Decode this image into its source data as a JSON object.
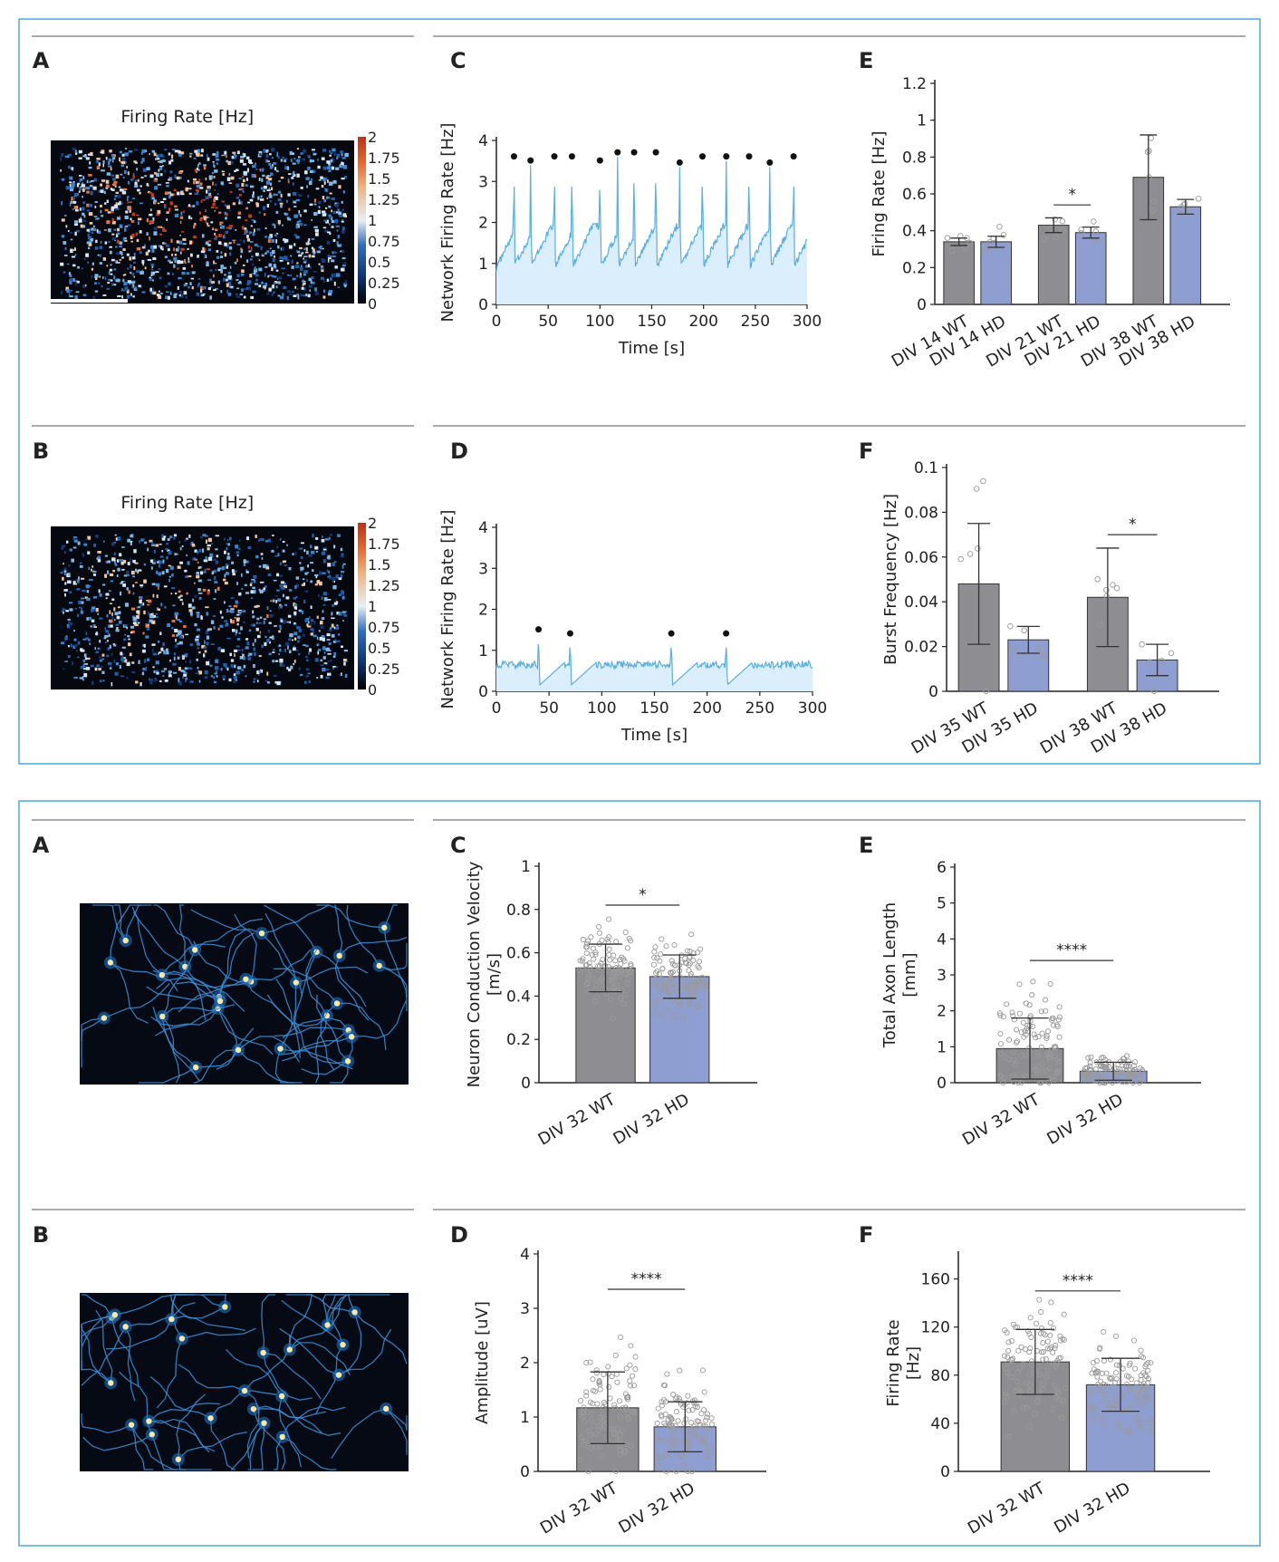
{
  "colors": {
    "frame": "#4aa8d8",
    "wt": "#8e8e92",
    "hd": "#8f9ed0",
    "trace": "#5aaee0",
    "trace_fill": "#dbeefb",
    "rule": "#555555"
  },
  "figure1": {
    "panel_A": {
      "letter": "A",
      "title": "Firing Rate [Hz]",
      "colorbar_ticks": [
        "2",
        "1.75",
        "1.5",
        "1.25",
        "1",
        "0.75",
        "0.5",
        "0.25",
        "0"
      ],
      "image": "firing-rate-heatmap",
      "has_scale_bar": true
    },
    "panel_B": {
      "letter": "B",
      "title": "Firing Rate [Hz]",
      "colorbar_ticks": [
        "2",
        "1.75",
        "1.5",
        "1.25",
        "1",
        "0.75",
        "0.5",
        "0.25",
        "0"
      ],
      "image": "firing-rate-heatmap"
    }
  },
  "figure2": {
    "panel_A": {
      "letter": "A",
      "image": "axon-tracking-map"
    },
    "panel_B": {
      "letter": "B",
      "image": "axon-tracking-map"
    }
  },
  "chart_data": [
    {
      "figure": 1,
      "panel": "C",
      "type": "line",
      "xlabel": "Time [s]",
      "ylabel": "Network Firing Rate [Hz]",
      "xlim": [
        0,
        300
      ],
      "ylim": [
        0,
        4
      ],
      "xticks": [
        "0",
        "50",
        "100",
        "150",
        "200",
        "250",
        "300"
      ],
      "yticks": [
        "0",
        "1",
        "2",
        "3",
        "4"
      ],
      "baseline": 0.9,
      "bursts": [
        {
          "x": 17,
          "y": 3.5
        },
        {
          "x": 33,
          "y": 3.4
        },
        {
          "x": 56,
          "y": 3.5
        },
        {
          "x": 73,
          "y": 3.5
        },
        {
          "x": 100,
          "y": 3.4
        },
        {
          "x": 117,
          "y": 3.6
        },
        {
          "x": 133,
          "y": 3.6
        },
        {
          "x": 154,
          "y": 3.6
        },
        {
          "x": 177,
          "y": 3.35
        },
        {
          "x": 199,
          "y": 3.5
        },
        {
          "x": 222,
          "y": 3.5
        },
        {
          "x": 244,
          "y": 3.5
        },
        {
          "x": 264,
          "y": 3.35
        },
        {
          "x": 287,
          "y": 3.5
        }
      ]
    },
    {
      "figure": 1,
      "panel": "D",
      "type": "line",
      "xlabel": "Time [s]",
      "ylabel": "Network Firing Rate [Hz]",
      "xlim": [
        0,
        300
      ],
      "ylim": [
        0,
        4
      ],
      "xticks": [
        "0",
        "50",
        "100",
        "150",
        "200",
        "250",
        "300"
      ],
      "yticks": [
        "0",
        "1",
        "2",
        "3",
        "4"
      ],
      "baseline": 0.65,
      "bursts": [
        {
          "x": 40,
          "y": 1.4
        },
        {
          "x": 70,
          "y": 1.3
        },
        {
          "x": 166,
          "y": 1.3
        },
        {
          "x": 218,
          "y": 1.3
        }
      ]
    },
    {
      "figure": 1,
      "panel": "E",
      "type": "bar",
      "ylabel": "Firing Rate [Hz]",
      "ylim": [
        0,
        1.2
      ],
      "yticks": [
        "0",
        "0.2",
        "0.4",
        "0.6",
        "0.8",
        "1",
        "1.2"
      ],
      "categories": [
        "DIV 14 WT",
        "DIV 14 HD",
        "DIV 21 WT",
        "DIV 21 HD",
        "DIV 38 WT",
        "DIV 38 HD"
      ],
      "values": [
        0.34,
        0.34,
        0.43,
        0.39,
        0.69,
        0.53
      ],
      "errors": [
        0.02,
        0.03,
        0.04,
        0.03,
        0.23,
        0.04
      ],
      "groups": [
        "WT",
        "HD",
        "WT",
        "HD",
        "WT",
        "HD"
      ],
      "significance": [
        {
          "between": [
            2,
            3
          ],
          "label": "*",
          "y": 0.54
        }
      ]
    },
    {
      "figure": 1,
      "panel": "F",
      "type": "bar",
      "ylabel": "Burst Frequency [Hz]",
      "ylim": [
        0,
        0.1
      ],
      "yticks": [
        "0",
        "0.02",
        "0.04",
        "0.06",
        "0.08",
        "0.1"
      ],
      "categories": [
        "DIV 35 WT",
        "DIV 35 HD",
        "DIV 38 WT",
        "DIV 38 HD"
      ],
      "values": [
        0.048,
        0.023,
        0.042,
        0.014
      ],
      "errors": [
        0.027,
        0.006,
        0.022,
        0.007
      ],
      "groups": [
        "WT",
        "HD",
        "WT",
        "HD"
      ],
      "significance": [
        {
          "between": [
            2,
            3
          ],
          "label": "*",
          "y": 0.07
        }
      ]
    },
    {
      "figure": 2,
      "panel": "C",
      "type": "bar",
      "ylabel": "Neuron Conduction Velocity [m/s]",
      "ylim": [
        0,
        1
      ],
      "yticks": [
        "0",
        "0.2",
        "0.4",
        "0.6",
        "0.8",
        "1"
      ],
      "categories": [
        "DIV 32 WT",
        "DIV 32 HD"
      ],
      "values": [
        0.53,
        0.49
      ],
      "errors": [
        0.11,
        0.1
      ],
      "groups": [
        "WT",
        "HD"
      ],
      "significance": [
        {
          "between": [
            0,
            1
          ],
          "label": "*",
          "y": 0.82
        }
      ]
    },
    {
      "figure": 2,
      "panel": "E",
      "type": "bar",
      "ylabel": "Total Axon Length [mm]",
      "ylim": [
        0,
        6
      ],
      "yticks": [
        "0",
        "1",
        "2",
        "3",
        "4",
        "5",
        "6"
      ],
      "categories": [
        "DIV 32 WT",
        "DIV 32 HD"
      ],
      "values": [
        0.95,
        0.32
      ],
      "errors": [
        0.85,
        0.25
      ],
      "groups": [
        "WT",
        "HD"
      ],
      "significance": [
        {
          "between": [
            0,
            1
          ],
          "label": "****",
          "y": 3.4
        }
      ]
    },
    {
      "figure": 2,
      "panel": "D",
      "type": "bar",
      "ylabel": "Amplitude [uV]",
      "ylim": [
        0,
        4
      ],
      "yticks": [
        "0",
        "1",
        "2",
        "3",
        "4"
      ],
      "categories": [
        "DIV 32 WT",
        "DIV 32 HD"
      ],
      "values": [
        1.17,
        0.82
      ],
      "errors": [
        0.66,
        0.46
      ],
      "groups": [
        "WT",
        "HD"
      ],
      "significance": [
        {
          "between": [
            0,
            1
          ],
          "label": "****",
          "y": 3.35
        }
      ]
    },
    {
      "figure": 2,
      "panel": "F",
      "type": "bar",
      "ylabel": "Firing Rate [Hz]",
      "ylim": [
        0,
        180
      ],
      "yticks": [
        "0",
        "40",
        "80",
        "120",
        "160"
      ],
      "categories": [
        "DIV 32 WT",
        "DIV 32 HD"
      ],
      "values": [
        91,
        72
      ],
      "errors": [
        27,
        22
      ],
      "groups": [
        "WT",
        "HD"
      ],
      "significance": [
        {
          "between": [
            0,
            1
          ],
          "label": "****",
          "y": 150
        }
      ]
    }
  ]
}
